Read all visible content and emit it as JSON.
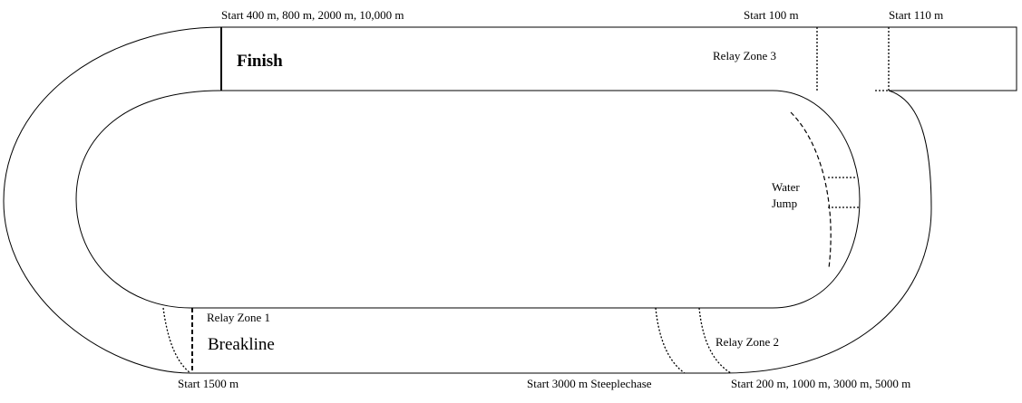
{
  "labels": {
    "start_400_800_2000_10000": "Start 400 m, 800 m, 2000 m, 10,000 m",
    "start_100": "Start 100 m",
    "start_110": "Start 110 m",
    "finish": "Finish",
    "relay_zone_3": "Relay Zone 3",
    "water": "Water",
    "jump": "Jump",
    "relay_zone_1": "Relay Zone 1",
    "breakline": "Breakline",
    "relay_zone_2": "Relay Zone 2",
    "start_1500": "Start 1500 m",
    "start_3000_steeplechase": "Start 3000 m Steeplechase",
    "start_200_1000_3000_5000": "Start 200 m, 1000 m, 3000 m, 5000 m"
  }
}
